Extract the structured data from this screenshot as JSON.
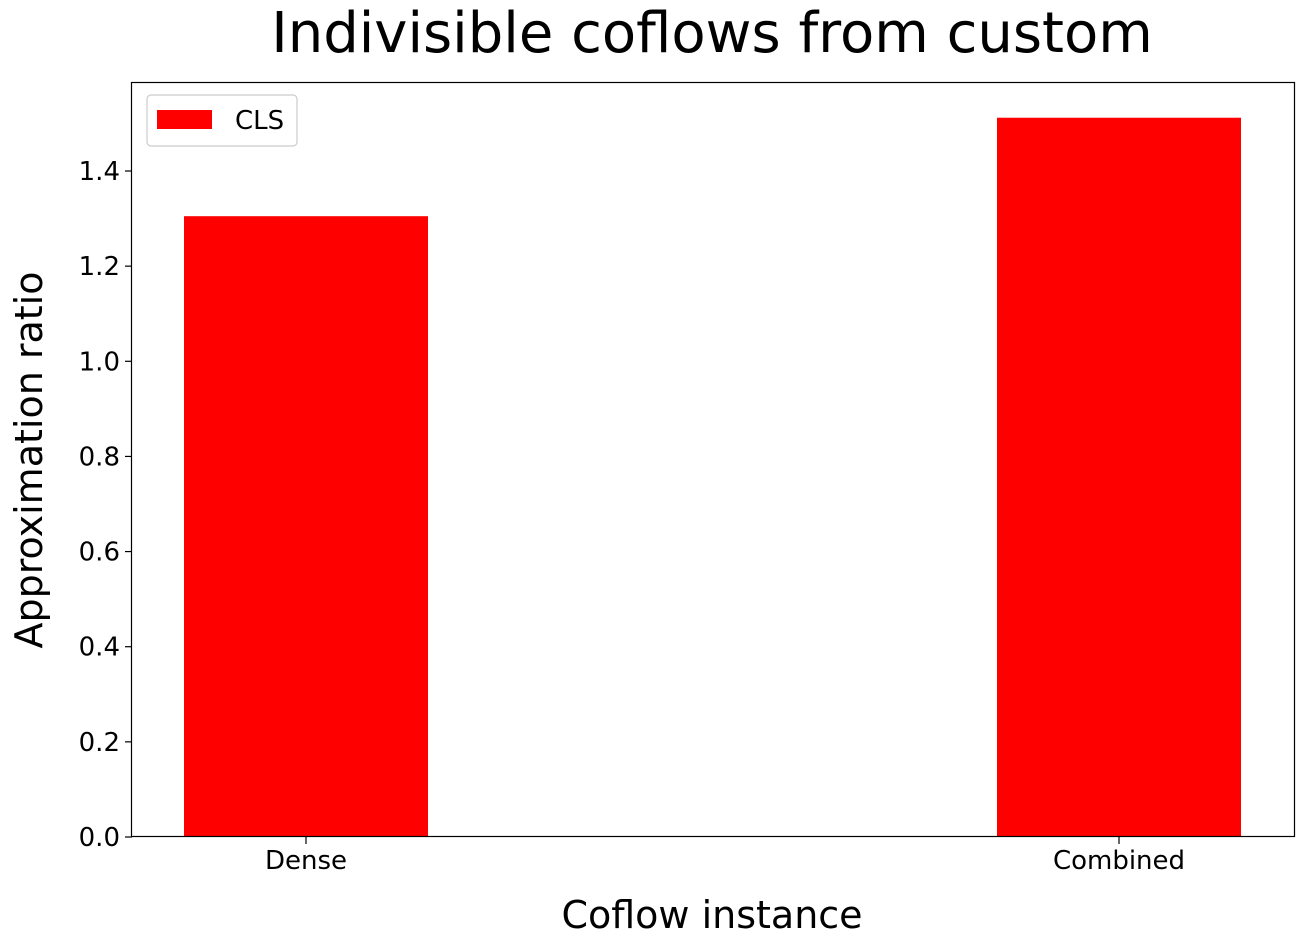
{
  "chart_data": {
    "type": "bar",
    "title": "Indivisible coflows from custom",
    "xlabel": "Coflow instance",
    "ylabel": "Approximation ratio",
    "categories": [
      "Dense",
      "Combined"
    ],
    "series": [
      {
        "name": "CLS",
        "color": "#ff0000",
        "values": [
          1.305,
          1.512
        ]
      }
    ],
    "ylim": [
      0,
      1.585
    ],
    "yticks": [
      0.0,
      0.2,
      0.4,
      0.6,
      0.8,
      1.0,
      1.2,
      1.4
    ],
    "ytick_labels": [
      "0.0",
      "0.2",
      "0.4",
      "0.6",
      "0.8",
      "1.0",
      "1.2",
      "1.4"
    ],
    "grid": false,
    "legend_position": "top-left"
  }
}
